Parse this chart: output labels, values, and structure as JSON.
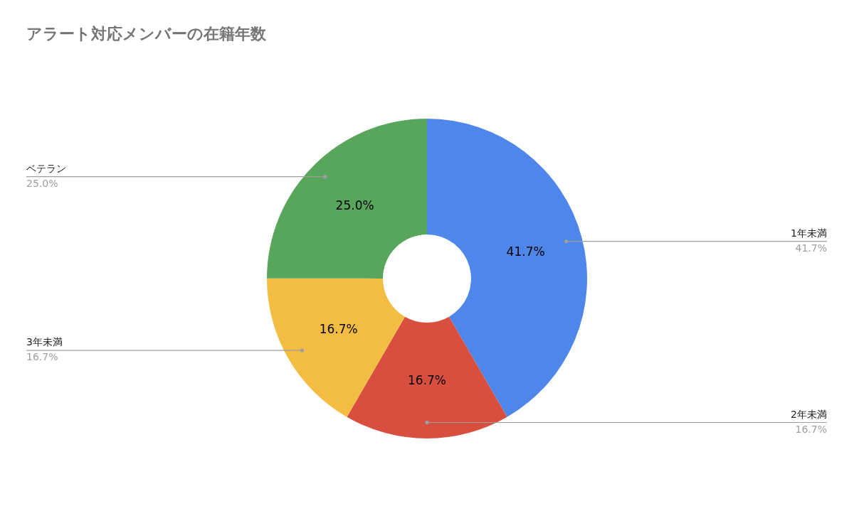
{
  "chart_data": {
    "type": "donut",
    "title": "アラート対応メンバーの在籍年数",
    "categories": [
      "1年未満",
      "2年未満",
      "3年未満",
      "ベテラン"
    ],
    "values": [
      41.7,
      16.7,
      16.7,
      25.0
    ],
    "value_labels": [
      "41.7%",
      "16.7%",
      "16.7%",
      "25.0%"
    ],
    "colors": [
      "#4e86ea",
      "#d94f3f",
      "#f2bd42",
      "#58a65c"
    ]
  }
}
